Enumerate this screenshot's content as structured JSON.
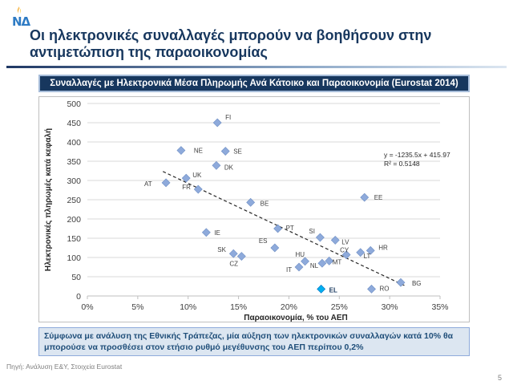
{
  "logo": {
    "text": "ΝΔ"
  },
  "slide": {
    "title": "Οι ηλεκτρονικές συναλλαγές μπορούν να βοηθήσουν στην αντιμετώπιση της παραοικονομίας",
    "note": "Σύμφωνα με ανάλυση της Εθνικής Τράπεζας, μία αύξηση των ηλεκτρονικών συναλλαγών κατά 10% θα μπορούσε να προσθέσει στον ετήσιο ρυθμό μεγέθυνσης του  ΑΕΠ περίπου 0,2%",
    "source": "Πηγή: Ανάλυση E&Y, Στοιχεία Eurostat",
    "page_number": "5"
  },
  "colors": {
    "navy": "#17375e",
    "marker": "#8eaadb",
    "highlight": "#00b0f0",
    "trendline": "#262626"
  },
  "chart_data": {
    "type": "scatter",
    "title": "Συναλλαγές με Ηλεκτρονικά Μέσα Πληρωμής Ανά Κάτοικο και Παραοικονομία (Eurostat 2014)",
    "xlabel": "Παραοικονομία, % του ΑΕΠ",
    "ylabel": "Ηλεκτρονικές πληρωμές κατά κεφαλή",
    "xlim": [
      0,
      0.35
    ],
    "ylim": [
      0,
      500
    ],
    "x_ticks": [
      0,
      0.05,
      0.1,
      0.15,
      0.2,
      0.25,
      0.3,
      0.35
    ],
    "x_tick_labels": [
      "0%",
      "5%",
      "10%",
      "15%",
      "20%",
      "25%",
      "30%",
      "35%"
    ],
    "y_ticks": [
      0,
      50,
      100,
      150,
      200,
      250,
      300,
      350,
      400,
      450,
      500
    ],
    "y_tick_labels": [
      "0",
      "50",
      "100",
      "150",
      "200",
      "250",
      "300",
      "350",
      "400",
      "450",
      "500"
    ],
    "grid": "horizontal",
    "points": [
      {
        "label": "FI",
        "x": 0.129,
        "y": 450
      },
      {
        "label": "NE",
        "x": 0.093,
        "y": 378
      },
      {
        "label": "SE",
        "x": 0.137,
        "y": 376
      },
      {
        "label": "DK",
        "x": 0.128,
        "y": 339
      },
      {
        "label": "UK",
        "x": 0.098,
        "y": 306
      },
      {
        "label": "AT",
        "x": 0.078,
        "y": 294
      },
      {
        "label": "FR",
        "x": 0.11,
        "y": 277
      },
      {
        "label": "BE",
        "x": 0.162,
        "y": 243
      },
      {
        "label": "EE",
        "x": 0.275,
        "y": 256
      },
      {
        "label": "PT",
        "x": 0.189,
        "y": 175
      },
      {
        "label": "SI",
        "x": 0.231,
        "y": 152
      },
      {
        "label": "LV",
        "x": 0.246,
        "y": 145
      },
      {
        "label": "IE",
        "x": 0.118,
        "y": 165
      },
      {
        "label": "ES",
        "x": 0.186,
        "y": 125
      },
      {
        "label": "HR",
        "x": 0.281,
        "y": 118
      },
      {
        "label": "LT",
        "x": 0.271,
        "y": 113
      },
      {
        "label": "CY",
        "x": 0.257,
        "y": 107
      },
      {
        "label": "SK",
        "x": 0.145,
        "y": 110
      },
      {
        "label": "CZ",
        "x": 0.153,
        "y": 103
      },
      {
        "label": "HU",
        "x": 0.216,
        "y": 90
      },
      {
        "label": "MT",
        "x": 0.24,
        "y": 91
      },
      {
        "label": "NL",
        "x": 0.233,
        "y": 85
      },
      {
        "label": "IT",
        "x": 0.21,
        "y": 75
      },
      {
        "label": "BG",
        "x": 0.311,
        "y": 35
      },
      {
        "label": "RO",
        "x": 0.282,
        "y": 18
      },
      {
        "label": "EL",
        "x": 0.232,
        "y": 18,
        "highlight": true
      }
    ],
    "trendline": {
      "equation": "y = -1235.5x + 415.97",
      "r_squared": "R² = 0.5148",
      "slope": -1235.5,
      "intercept": 415.97,
      "x_range": [
        0.075,
        0.315
      ]
    }
  }
}
